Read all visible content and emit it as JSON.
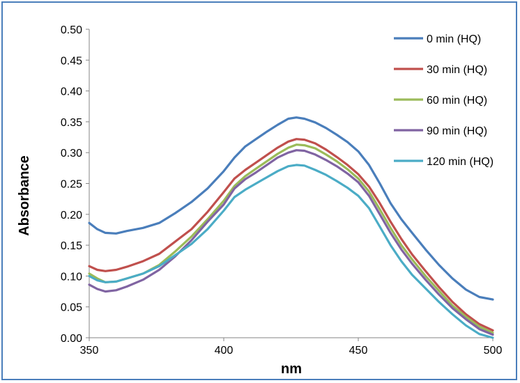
{
  "chart_data": {
    "type": "line",
    "title": "",
    "xlabel": "nm",
    "ylabel": "Absorbance",
    "xlim": [
      350,
      500
    ],
    "ylim": [
      0,
      0.5
    ],
    "xticks": [
      "350",
      "400",
      "450",
      "500"
    ],
    "yticks": [
      "0.00",
      "0.05",
      "0.10",
      "0.15",
      "0.20",
      "0.25",
      "0.30",
      "0.35",
      "0.40",
      "0.45",
      "0.50"
    ],
    "grid": false,
    "legend_position": "top-right",
    "series": [
      {
        "name": "0 min (HQ)",
        "color": "#4a7ebb",
        "points": [
          [
            350,
            0.186
          ],
          [
            353,
            0.176
          ],
          [
            356,
            0.17
          ],
          [
            360,
            0.169
          ],
          [
            364,
            0.173
          ],
          [
            370,
            0.178
          ],
          [
            376,
            0.186
          ],
          [
            382,
            0.202
          ],
          [
            388,
            0.22
          ],
          [
            394,
            0.242
          ],
          [
            400,
            0.27
          ],
          [
            404,
            0.292
          ],
          [
            408,
            0.31
          ],
          [
            412,
            0.322
          ],
          [
            416,
            0.334
          ],
          [
            420,
            0.345
          ],
          [
            424,
            0.355
          ],
          [
            427,
            0.357
          ],
          [
            430,
            0.355
          ],
          [
            434,
            0.349
          ],
          [
            438,
            0.34
          ],
          [
            442,
            0.329
          ],
          [
            446,
            0.317
          ],
          [
            450,
            0.302
          ],
          [
            454,
            0.28
          ],
          [
            458,
            0.25
          ],
          [
            462,
            0.218
          ],
          [
            466,
            0.192
          ],
          [
            470,
            0.17
          ],
          [
            475,
            0.143
          ],
          [
            480,
            0.118
          ],
          [
            485,
            0.096
          ],
          [
            490,
            0.078
          ],
          [
            495,
            0.066
          ],
          [
            500,
            0.062
          ]
        ]
      },
      {
        "name": "30 min (HQ)",
        "color": "#c0504d",
        "points": [
          [
            350,
            0.116
          ],
          [
            353,
            0.11
          ],
          [
            356,
            0.108
          ],
          [
            360,
            0.11
          ],
          [
            364,
            0.115
          ],
          [
            370,
            0.124
          ],
          [
            376,
            0.136
          ],
          [
            382,
            0.156
          ],
          [
            388,
            0.176
          ],
          [
            394,
            0.204
          ],
          [
            400,
            0.236
          ],
          [
            404,
            0.258
          ],
          [
            408,
            0.272
          ],
          [
            412,
            0.284
          ],
          [
            416,
            0.296
          ],
          [
            420,
            0.308
          ],
          [
            424,
            0.318
          ],
          [
            427,
            0.322
          ],
          [
            430,
            0.321
          ],
          [
            434,
            0.315
          ],
          [
            438,
            0.305
          ],
          [
            442,
            0.293
          ],
          [
            446,
            0.28
          ],
          [
            450,
            0.265
          ],
          [
            454,
            0.245
          ],
          [
            458,
            0.218
          ],
          [
            462,
            0.188
          ],
          [
            466,
            0.16
          ],
          [
            470,
            0.135
          ],
          [
            475,
            0.108
          ],
          [
            480,
            0.082
          ],
          [
            485,
            0.058
          ],
          [
            490,
            0.038
          ],
          [
            495,
            0.022
          ],
          [
            500,
            0.012
          ]
        ]
      },
      {
        "name": "60 min (HQ)",
        "color": "#9bbb59",
        "points": [
          [
            350,
            0.104
          ],
          [
            353,
            0.096
          ],
          [
            356,
            0.09
          ],
          [
            360,
            0.091
          ],
          [
            364,
            0.096
          ],
          [
            370,
            0.104
          ],
          [
            376,
            0.118
          ],
          [
            382,
            0.14
          ],
          [
            388,
            0.164
          ],
          [
            394,
            0.192
          ],
          [
            400,
            0.222
          ],
          [
            404,
            0.246
          ],
          [
            408,
            0.262
          ],
          [
            412,
            0.274
          ],
          [
            416,
            0.286
          ],
          [
            420,
            0.298
          ],
          [
            424,
            0.308
          ],
          [
            427,
            0.313
          ],
          [
            430,
            0.312
          ],
          [
            434,
            0.307
          ],
          [
            438,
            0.297
          ],
          [
            442,
            0.286
          ],
          [
            446,
            0.273
          ],
          [
            450,
            0.258
          ],
          [
            454,
            0.237
          ],
          [
            458,
            0.208
          ],
          [
            462,
            0.178
          ],
          [
            466,
            0.15
          ],
          [
            470,
            0.127
          ],
          [
            475,
            0.1
          ],
          [
            480,
            0.076
          ],
          [
            485,
            0.052
          ],
          [
            490,
            0.034
          ],
          [
            495,
            0.018
          ],
          [
            500,
            0.008
          ]
        ]
      },
      {
        "name": "90 min (HQ)",
        "color": "#8064a2",
        "points": [
          [
            350,
            0.086
          ],
          [
            353,
            0.079
          ],
          [
            356,
            0.075
          ],
          [
            360,
            0.077
          ],
          [
            364,
            0.083
          ],
          [
            370,
            0.094
          ],
          [
            376,
            0.11
          ],
          [
            382,
            0.132
          ],
          [
            388,
            0.158
          ],
          [
            394,
            0.188
          ],
          [
            400,
            0.216
          ],
          [
            404,
            0.242
          ],
          [
            408,
            0.257
          ],
          [
            412,
            0.268
          ],
          [
            416,
            0.28
          ],
          [
            420,
            0.292
          ],
          [
            424,
            0.3
          ],
          [
            427,
            0.304
          ],
          [
            430,
            0.303
          ],
          [
            434,
            0.297
          ],
          [
            438,
            0.288
          ],
          [
            442,
            0.278
          ],
          [
            446,
            0.266
          ],
          [
            450,
            0.252
          ],
          [
            454,
            0.23
          ],
          [
            458,
            0.2
          ],
          [
            462,
            0.17
          ],
          [
            466,
            0.143
          ],
          [
            470,
            0.12
          ],
          [
            475,
            0.094
          ],
          [
            480,
            0.07
          ],
          [
            485,
            0.048
          ],
          [
            490,
            0.03
          ],
          [
            495,
            0.014
          ],
          [
            500,
            0.005
          ]
        ]
      },
      {
        "name": "120 min (HQ)",
        "color": "#4bacc6",
        "points": [
          [
            350,
            0.1
          ],
          [
            353,
            0.093
          ],
          [
            356,
            0.09
          ],
          [
            360,
            0.091
          ],
          [
            364,
            0.096
          ],
          [
            370,
            0.104
          ],
          [
            376,
            0.116
          ],
          [
            382,
            0.134
          ],
          [
            388,
            0.152
          ],
          [
            394,
            0.176
          ],
          [
            400,
            0.206
          ],
          [
            404,
            0.228
          ],
          [
            408,
            0.24
          ],
          [
            412,
            0.25
          ],
          [
            416,
            0.26
          ],
          [
            420,
            0.27
          ],
          [
            424,
            0.278
          ],
          [
            427,
            0.28
          ],
          [
            430,
            0.279
          ],
          [
            434,
            0.272
          ],
          [
            438,
            0.264
          ],
          [
            442,
            0.254
          ],
          [
            446,
            0.243
          ],
          [
            450,
            0.23
          ],
          [
            454,
            0.21
          ],
          [
            458,
            0.18
          ],
          [
            462,
            0.15
          ],
          [
            466,
            0.124
          ],
          [
            470,
            0.102
          ],
          [
            475,
            0.08
          ],
          [
            480,
            0.058
          ],
          [
            485,
            0.038
          ],
          [
            490,
            0.02
          ],
          [
            495,
            0.006
          ],
          [
            500,
            0.0
          ]
        ]
      }
    ]
  }
}
